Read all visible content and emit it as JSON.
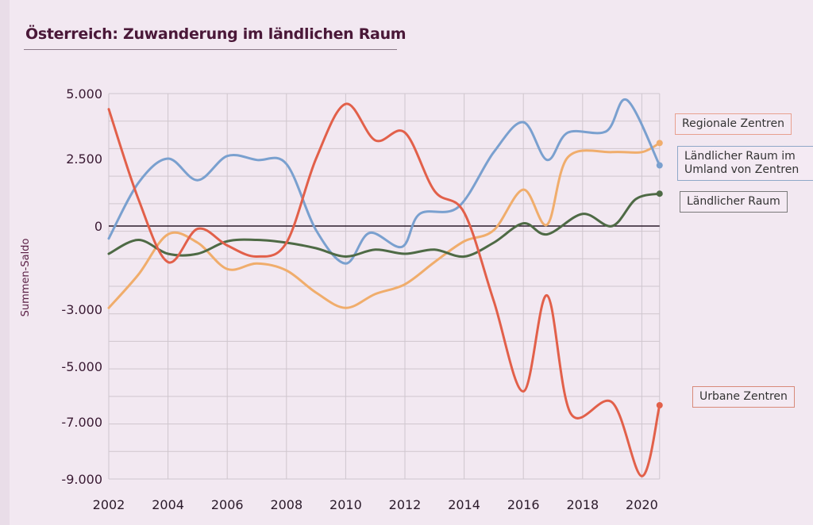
{
  "title": "Österreich: Zuwanderung im ländlichen Raum",
  "chart_data": {
    "type": "line",
    "title": "Österreich: Zuwanderung im ländlichen Raum",
    "xlabel": "",
    "ylabel": "Summen-Saldo",
    "xlim": [
      2002,
      2020.6
    ],
    "x_ticks": [
      2002,
      2004,
      2006,
      2008,
      2010,
      2012,
      2014,
      2016,
      2018,
      2020
    ],
    "y_ticks": [
      {
        "value": 5000,
        "label": "5.000"
      },
      {
        "value": 2500,
        "label": "2.500"
      },
      {
        "value": 0,
        "label": "0"
      },
      {
        "value": -3000,
        "label": "-3.000"
      },
      {
        "value": -5000,
        "label": "-5.000"
      },
      {
        "value": -7000,
        "label": "-7.000"
      },
      {
        "value": -9000,
        "label": "-9.000"
      }
    ],
    "grid": true,
    "legend_placement": "right",
    "series": [
      {
        "name": "Regionale Zentren",
        "color": "#f0ad6c",
        "x": [
          2002,
          2003,
          2004,
          2005,
          2006,
          2007,
          2008,
          2009,
          2010,
          2011,
          2012,
          2013,
          2014,
          2015,
          2016,
          2016.8,
          2017.5,
          2019,
          2020,
          2020.6
        ],
        "values": [
          -2950,
          -1750,
          -300,
          -600,
          -1550,
          -1350,
          -1600,
          -2400,
          -2950,
          -2450,
          -2100,
          -1300,
          -550,
          -150,
          1350,
          50,
          2550,
          2750,
          2750,
          3100
        ]
      },
      {
        "name": "Ländlicher Raum im Umland von Zentren",
        "color": "#7aa0cf",
        "x": [
          2002,
          2003,
          2004,
          2005,
          2006,
          2007,
          2008,
          2009,
          2010,
          2010.8,
          2011.9,
          2012.5,
          2013.8,
          2015,
          2016,
          2016.8,
          2017.5,
          2018.8,
          2019.5,
          2020.6
        ],
        "values": [
          -450,
          1600,
          2500,
          1700,
          2600,
          2450,
          2300,
          -150,
          -1350,
          -250,
          -750,
          450,
          700,
          2750,
          3900,
          2450,
          3500,
          3550,
          4750,
          2250
        ]
      },
      {
        "name": "Ländlicher Raum",
        "color": "#4e6a45",
        "x": [
          2002,
          2003,
          2004,
          2005,
          2006,
          2007,
          2008,
          2009,
          2010,
          2011,
          2012,
          2013,
          2014,
          2015,
          2016,
          2016.8,
          2018,
          2019,
          2019.8,
          2020.6
        ],
        "values": [
          -1000,
          -500,
          -1000,
          -1000,
          -550,
          -500,
          -600,
          -800,
          -1100,
          -850,
          -1000,
          -850,
          -1100,
          -600,
          100,
          -300,
          450,
          0,
          1000,
          1200
        ]
      },
      {
        "name": "Urbane Zentren",
        "color": "#e2604a",
        "x": [
          2002,
          2003,
          2004,
          2005,
          2006,
          2007,
          2008,
          2009,
          2010,
          2011,
          2012,
          2013,
          2014,
          2015,
          2016,
          2016.8,
          2017.6,
          2019,
          2020,
          2020.6
        ],
        "values": [
          4400,
          1000,
          -1300,
          -100,
          -700,
          -1100,
          -600,
          2500,
          4600,
          3200,
          3500,
          1300,
          500,
          -2700,
          -5900,
          -2500,
          -6700,
          -6300,
          -8900,
          -6400
        ]
      }
    ]
  }
}
